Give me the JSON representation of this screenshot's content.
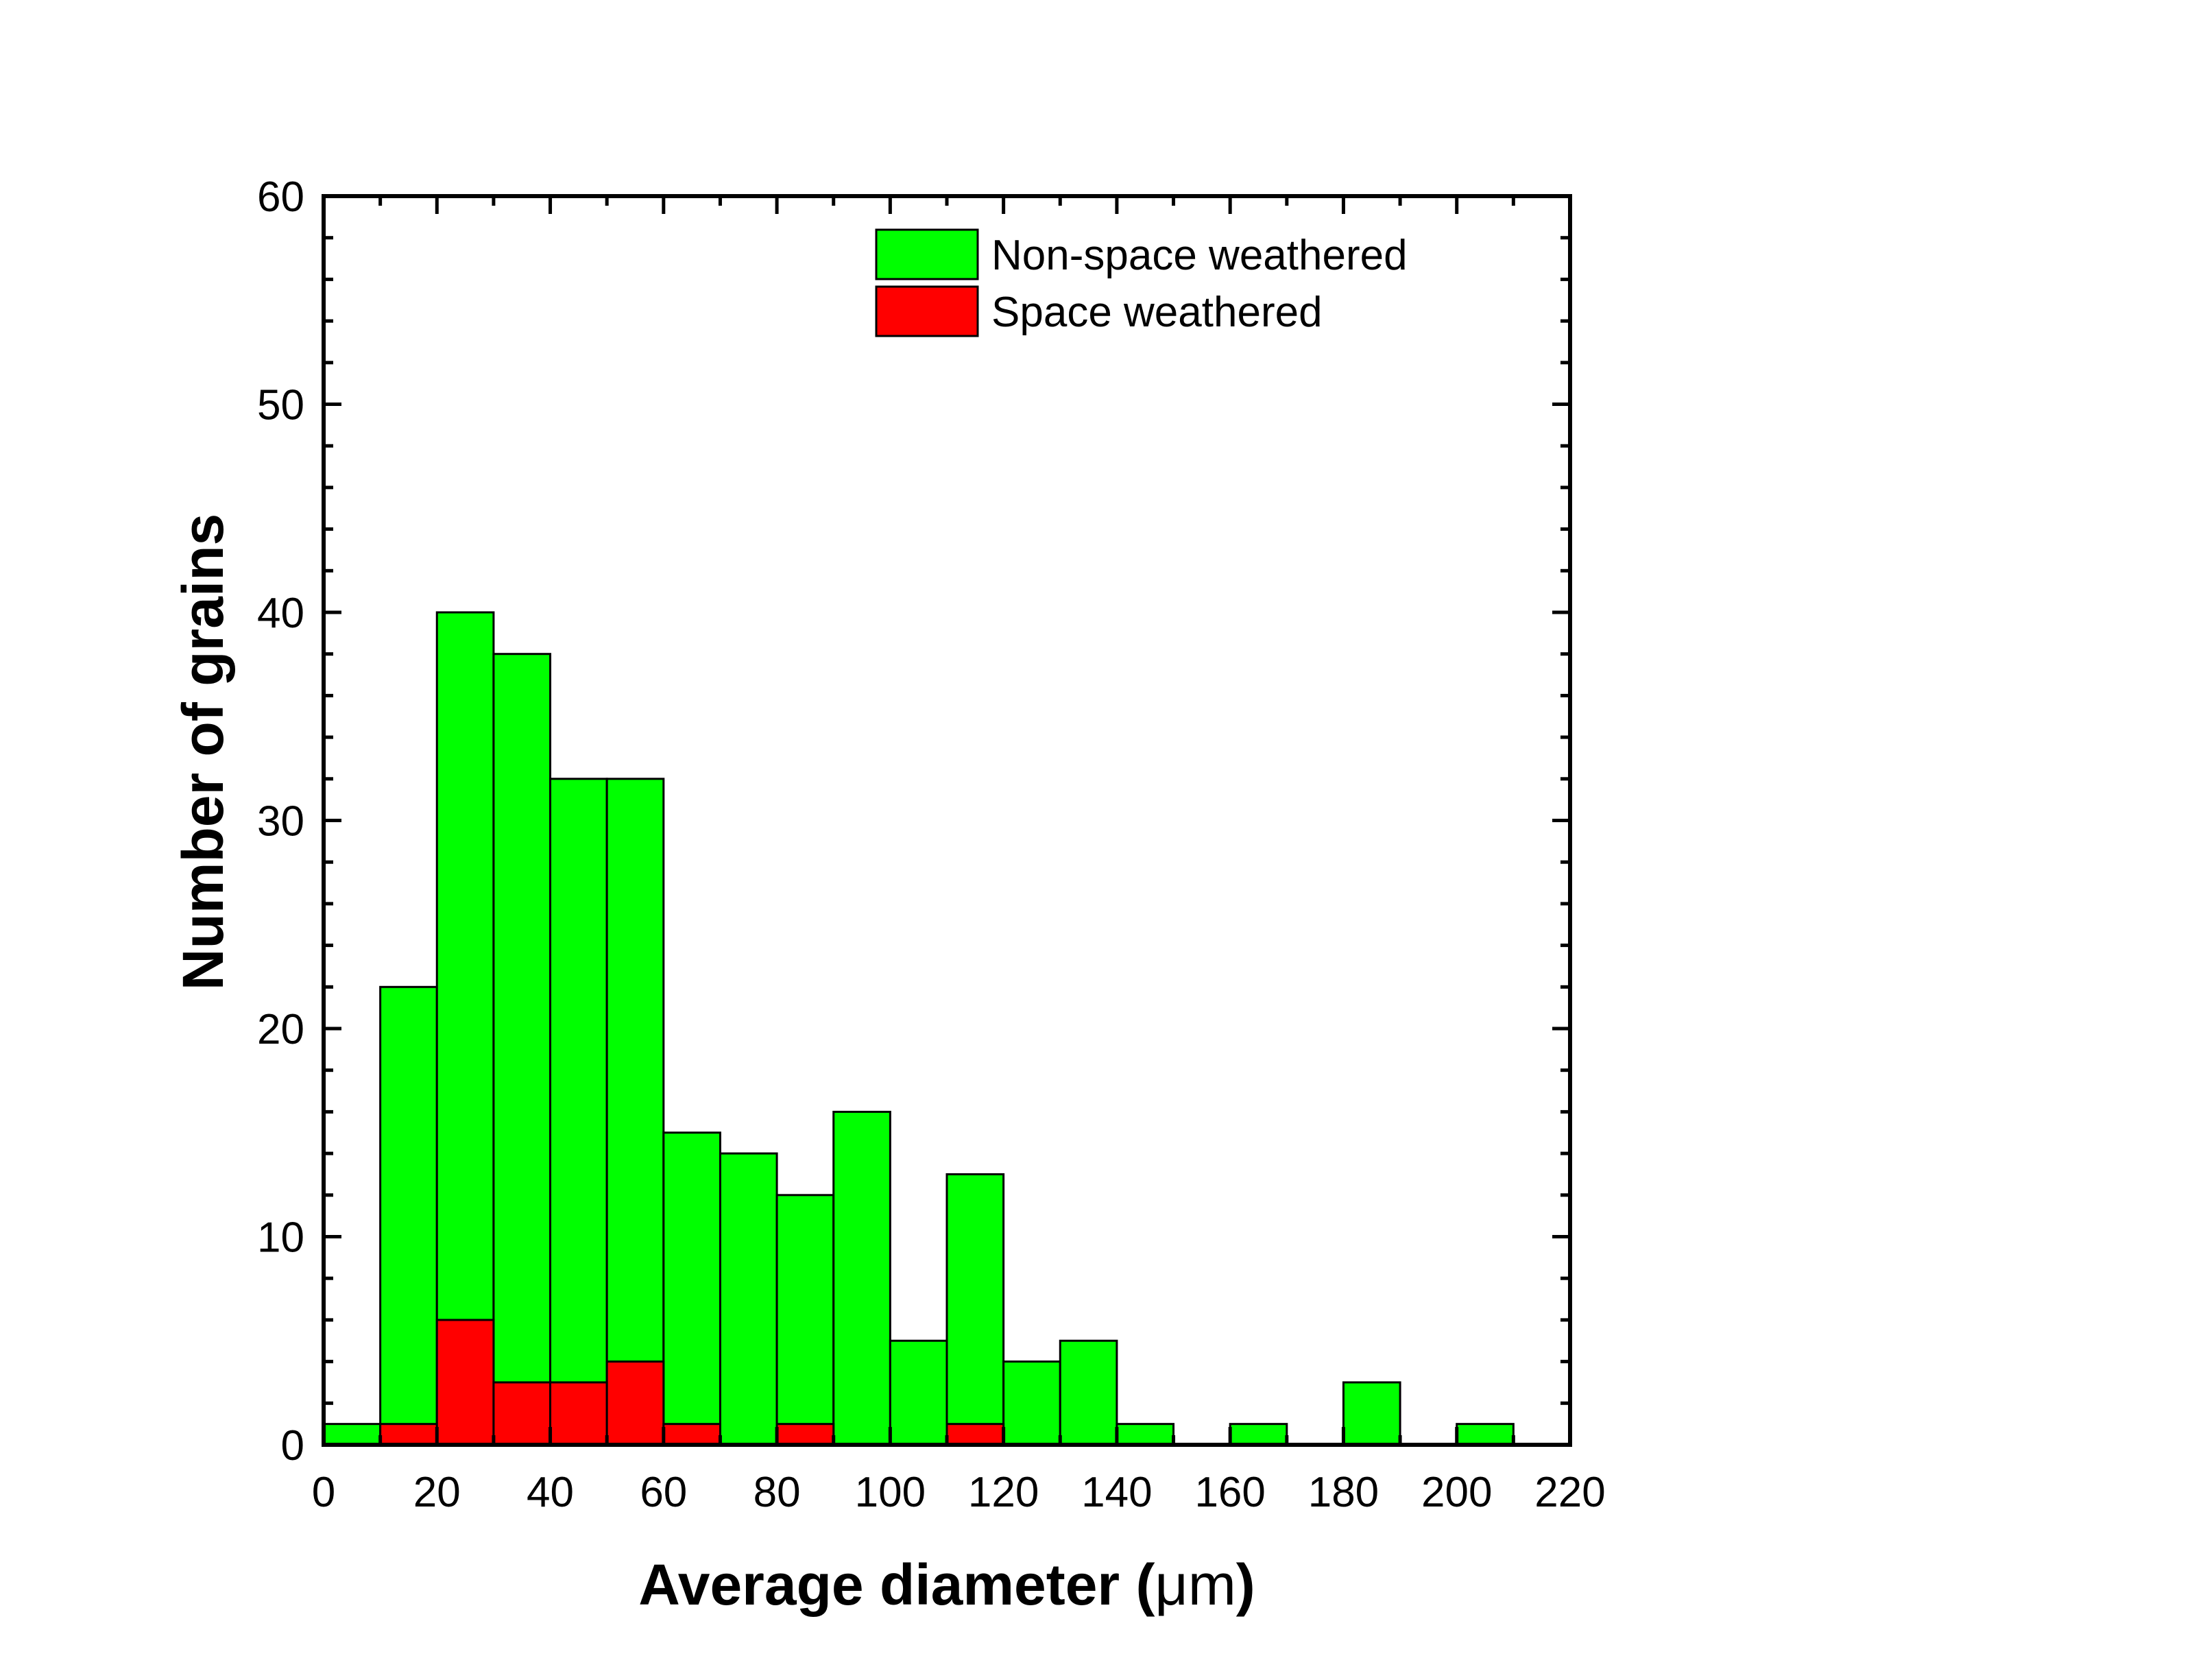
{
  "chart_data": {
    "type": "bar",
    "variant": "histogram-overlaid",
    "bin_width": 10,
    "bins_start": [
      0,
      10,
      20,
      30,
      40,
      50,
      60,
      70,
      80,
      90,
      100,
      110,
      120,
      130,
      140,
      150,
      160,
      170,
      180,
      190,
      200
    ],
    "series": [
      {
        "name": "Non-space weathered",
        "color": "#00ff00",
        "values": [
          1,
          22,
          40,
          38,
          32,
          32,
          15,
          14,
          12,
          16,
          5,
          13,
          4,
          5,
          1,
          0,
          1,
          0,
          3,
          0,
          1
        ]
      },
      {
        "name": "Space weathered",
        "color": "#ff0000",
        "values": [
          0,
          1,
          6,
          3,
          3,
          4,
          1,
          0,
          1,
          0,
          0,
          1,
          0,
          0,
          0,
          0,
          0,
          0,
          0,
          0,
          0
        ]
      }
    ],
    "xlabel_main": "Average diameter (",
    "xlabel_unit": "μm",
    "xlabel_close": ")",
    "ylabel": "Number of grains",
    "xlim": [
      0,
      220
    ],
    "ylim": [
      0,
      60
    ],
    "xticks": [
      "0",
      "20",
      "40",
      "60",
      "80",
      "100",
      "120",
      "140",
      "160",
      "180",
      "200",
      "220"
    ],
    "yticks": [
      "0",
      "10",
      "20",
      "30",
      "40",
      "50",
      "60"
    ],
    "grid": false,
    "legend_position": "top-right"
  }
}
